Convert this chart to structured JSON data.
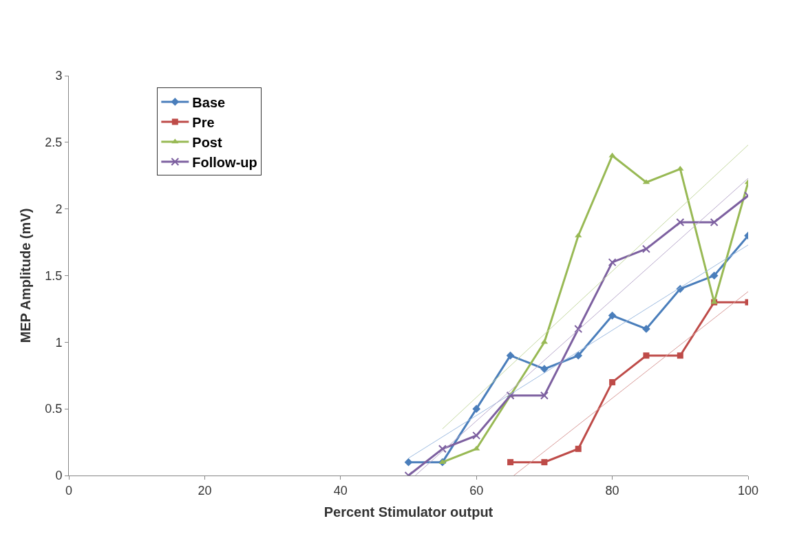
{
  "chart_data": {
    "type": "line",
    "xlabel": "Percent Stimulator output",
    "ylabel": "MEP Amplitude (mV)",
    "xlim": [
      0,
      100
    ],
    "xticks": [
      0,
      20,
      40,
      60,
      80,
      100
    ],
    "ylim": [
      0,
      3
    ],
    "yticks": [
      0,
      0.5,
      1,
      1.5,
      2,
      2.5,
      3
    ],
    "legend": "top left",
    "series": [
      {
        "name": "Base",
        "color": "#4a7ebb",
        "marker": "diamond",
        "x": [
          50,
          55,
          60,
          65,
          70,
          75,
          80,
          85,
          90,
          95,
          100
        ],
        "values": [
          0.1,
          0.1,
          0.5,
          0.9,
          0.8,
          0.9,
          1.2,
          1.1,
          1.4,
          1.5,
          1.8
        ]
      },
      {
        "name": "Pre",
        "color": "#be4b48",
        "marker": "square",
        "x": [
          65,
          70,
          75,
          80,
          85,
          90,
          95,
          100
        ],
        "values": [
          0.1,
          0.1,
          0.2,
          0.7,
          0.9,
          0.9,
          1.3,
          1.3
        ]
      },
      {
        "name": "Post",
        "color": "#98b954",
        "marker": "triangle",
        "x": [
          55,
          60,
          65,
          70,
          75,
          80,
          85,
          90,
          95,
          100
        ],
        "values": [
          0.1,
          0.2,
          0.6,
          1.0,
          1.8,
          2.4,
          2.2,
          2.3,
          1.3,
          2.2
        ]
      },
      {
        "name": "Follow-up",
        "color": "#7d60a0",
        "marker": "cross",
        "x": [
          50,
          55,
          60,
          65,
          70,
          75,
          80,
          85,
          90,
          95,
          100
        ],
        "values": [
          0,
          0.2,
          0.3,
          0.6,
          0.6,
          1.1,
          1.6,
          1.7,
          1.9,
          1.9,
          2.1
        ]
      },
      {
        "color": "#9dbbe0",
        "marker": "none",
        "x": [
          50,
          100
        ],
        "values": [
          0.13,
          1.73
        ]
      },
      {
        "color": "#d89a98",
        "marker": "none",
        "x": [
          65.5,
          100
        ],
        "values": [
          0,
          1.38
        ]
      },
      {
        "color": "#c4d8a0",
        "marker": "none",
        "x": [
          55,
          100
        ],
        "values": [
          0.35,
          2.48
        ]
      },
      {
        "color": "#b9a9cc",
        "marker": "none",
        "x": [
          51,
          100
        ],
        "values": [
          0,
          2.23
        ]
      }
    ]
  }
}
